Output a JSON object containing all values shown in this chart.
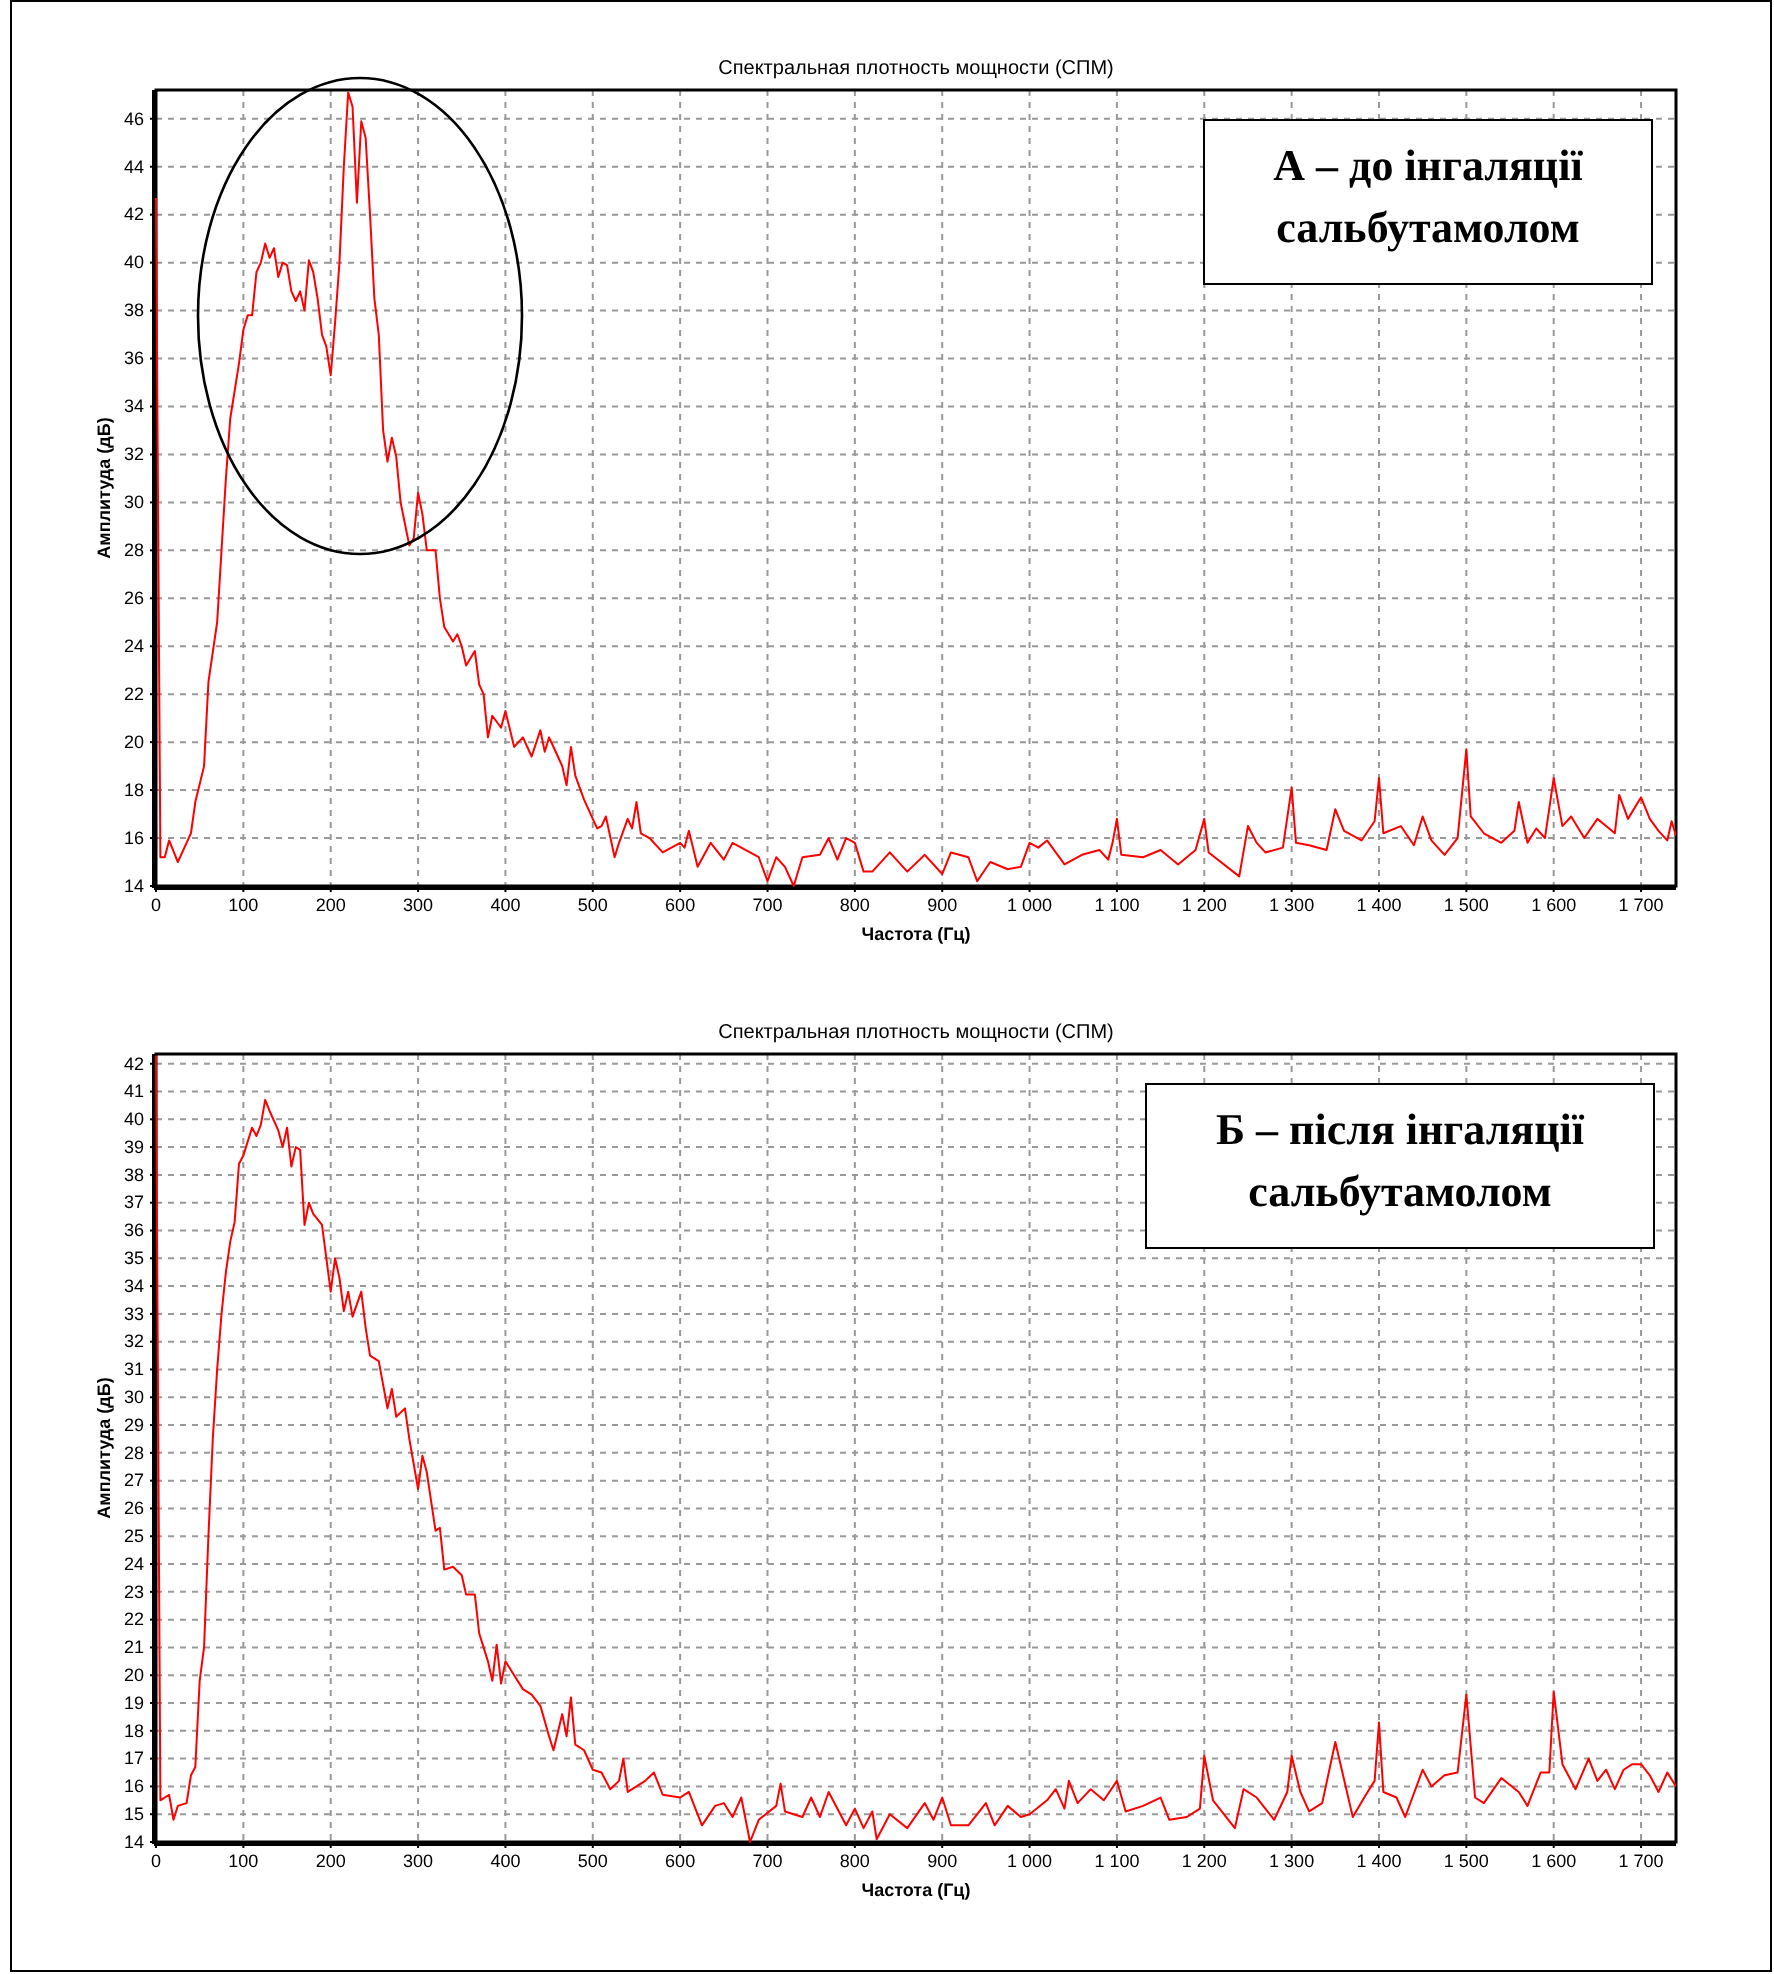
{
  "chart_data": [
    {
      "type": "line",
      "title": "Спектральная плотность мощности (СПМ)",
      "xlabel": "Частота (Гц)",
      "ylabel": "Амплитуда (дБ)",
      "annotations": [
        "А – до інгаляції сальбутамолом"
      ],
      "xlim": [
        0,
        1740
      ],
      "ylim": [
        14,
        47.2
      ],
      "xticks": [
        0,
        100,
        200,
        300,
        400,
        500,
        600,
        700,
        800,
        900,
        {
          "value": 1000,
          "label": "1 000"
        },
        {
          "value": 1100,
          "label": "1 100"
        },
        {
          "value": 1200,
          "label": "1 200"
        },
        {
          "value": 1300,
          "label": "1 300"
        },
        {
          "value": 1400,
          "label": "1 400"
        },
        {
          "value": 1500,
          "label": "1 500"
        },
        {
          "value": 1600,
          "label": "1 600"
        },
        {
          "value": 1700,
          "label": "1 700"
        }
      ],
      "yticks": [
        14,
        16,
        18,
        20,
        22,
        24,
        26,
        28,
        30,
        32,
        34,
        36,
        38,
        40,
        42,
        44,
        46
      ],
      "grid": true,
      "line_style": "solid",
      "marker": "none",
      "series": [
        {
          "color": "#ff0000",
          "x": [
            0,
            5,
            10,
            15,
            25,
            35,
            40,
            45,
            55,
            60,
            70,
            75,
            80,
            85,
            95,
            100,
            105,
            110,
            115,
            120,
            125,
            130,
            135,
            140,
            145,
            150,
            155,
            160,
            165,
            170,
            175,
            180,
            185,
            190,
            195,
            200,
            205,
            210,
            215,
            220,
            225,
            230,
            235,
            240,
            245,
            250,
            255,
            260,
            265,
            270,
            275,
            280,
            290,
            295,
            300,
            305,
            310,
            320,
            325,
            330,
            340,
            345,
            350,
            355,
            365,
            370,
            375,
            380,
            385,
            395,
            400,
            410,
            420,
            430,
            440,
            445,
            450,
            460,
            465,
            470,
            475,
            480,
            490,
            500,
            505,
            510,
            515,
            525,
            530,
            540,
            545,
            550,
            555,
            565,
            580,
            600,
            605,
            610,
            620,
            635,
            650,
            660,
            680,
            690,
            700,
            710,
            720,
            730,
            740,
            760,
            770,
            780,
            790,
            800,
            810,
            820,
            840,
            860,
            880,
            900,
            910,
            930,
            940,
            955,
            975,
            990,
            1000,
            1010,
            1020,
            1040,
            1060,
            1080,
            1090,
            1095,
            1100,
            1105,
            1130,
            1150,
            1170,
            1190,
            1200,
            1205,
            1240,
            1250,
            1260,
            1270,
            1290,
            1300,
            1305,
            1320,
            1340,
            1350,
            1360,
            1380,
            1395,
            1400,
            1405,
            1425,
            1440,
            1450,
            1460,
            1475,
            1490,
            1500,
            1505,
            1520,
            1540,
            1555,
            1560,
            1570,
            1580,
            1590,
            1600,
            1610,
            1620,
            1635,
            1650,
            1660,
            1670,
            1675,
            1685,
            1700,
            1710,
            1720,
            1730,
            1735,
            1740
          ],
          "values": [
            42.7,
            15.2,
            15.2,
            15.9,
            15.0,
            15.8,
            16.2,
            17.5,
            19,
            22.5,
            25,
            28,
            31,
            33.5,
            35.8,
            37.2,
            37.8,
            37.8,
            39.6,
            40,
            40.8,
            40.2,
            40.6,
            39.4,
            40,
            39.9,
            38.8,
            38.4,
            38.8,
            38.0,
            40.1,
            39.6,
            38.5,
            37,
            36.5,
            35.3,
            37.5,
            40,
            44,
            47.1,
            46.5,
            42.5,
            45.9,
            45.2,
            42,
            38.5,
            37,
            33,
            31.7,
            32.7,
            31.9,
            30,
            28.2,
            28.5,
            30.4,
            29.5,
            28,
            28,
            26,
            24.8,
            24.2,
            24.5,
            24,
            23.2,
            23.8,
            22.4,
            22,
            20.2,
            21.1,
            20.6,
            21.3,
            19.8,
            20.2,
            19.4,
            20.5,
            19.6,
            20.2,
            19.4,
            19,
            18.2,
            19.8,
            18.6,
            17.6,
            16.8,
            16.4,
            16.5,
            16.9,
            15.2,
            15.8,
            16.8,
            16.4,
            17.5,
            16.2,
            16,
            15.4,
            15.8,
            15.6,
            16.3,
            14.8,
            15.8,
            15.1,
            15.8,
            15.4,
            15.2,
            14.2,
            15.2,
            14.8,
            14.0,
            15.2,
            15.3,
            16,
            15.1,
            16,
            15.8,
            14.6,
            14.6,
            15.4,
            14.6,
            15.3,
            14.5,
            15.4,
            15.2,
            14.2,
            15,
            14.7,
            14.8,
            15.8,
            15.6,
            15.9,
            14.9,
            15.3,
            15.5,
            15.1,
            15.8,
            16.8,
            15.3,
            15.2,
            15.5,
            14.9,
            15.5,
            16.8,
            15.4,
            14.4,
            16.5,
            15.8,
            15.4,
            15.6,
            18.1,
            15.8,
            15.7,
            15.5,
            17.2,
            16.3,
            15.9,
            16.7,
            18.5,
            16.2,
            16.5,
            15.7,
            16.9,
            15.9,
            15.3,
            16,
            19.7,
            16.9,
            16.2,
            15.8,
            16.3,
            17.5,
            15.8,
            16.4,
            16,
            18.5,
            16.5,
            16.9,
            16,
            16.8,
            16.5,
            16.2,
            17.8,
            16.8,
            17.7,
            16.8,
            16.3,
            15.9,
            16.7,
            16.1
          ]
        }
      ]
    },
    {
      "type": "line",
      "title": "Спектральная плотность мощности (СПМ)",
      "xlabel": "Частота (Гц)",
      "ylabel": "Амплитуда (дБ)",
      "annotations": [
        "Б – після інгаляції сальбутамолом"
      ],
      "xlim": [
        0,
        1740
      ],
      "ylim": [
        14,
        42.35
      ],
      "xticks": [
        0,
        100,
        200,
        300,
        400,
        500,
        600,
        700,
        800,
        900,
        {
          "value": 1000,
          "label": "1 000"
        },
        {
          "value": 1100,
          "label": "1 100"
        },
        {
          "value": 1200,
          "label": "1 200"
        },
        {
          "value": 1300,
          "label": "1 300"
        },
        {
          "value": 1400,
          "label": "1 400"
        },
        {
          "value": 1500,
          "label": "1 500"
        },
        {
          "value": 1600,
          "label": "1 600"
        },
        {
          "value": 1700,
          "label": "1 700"
        }
      ],
      "yticks": [
        14,
        15,
        16,
        17,
        18,
        19,
        20,
        21,
        22,
        23,
        24,
        25,
        26,
        27,
        28,
        29,
        30,
        31,
        32,
        33,
        34,
        35,
        36,
        37,
        38,
        39,
        40,
        41,
        42
      ],
      "grid": true,
      "line_style": "solid",
      "marker": "none",
      "series": [
        {
          "color": "#ff0000",
          "x": [
            0,
            5,
            15,
            20,
            25,
            35,
            40,
            45,
            50,
            55,
            60,
            65,
            70,
            75,
            80,
            85,
            90,
            95,
            100,
            110,
            115,
            120,
            125,
            130,
            140,
            145,
            150,
            155,
            160,
            165,
            170,
            175,
            180,
            190,
            200,
            205,
            210,
            215,
            220,
            225,
            235,
            240,
            245,
            255,
            265,
            270,
            275,
            285,
            290,
            300,
            305,
            310,
            320,
            325,
            330,
            340,
            350,
            355,
            365,
            370,
            380,
            385,
            390,
            395,
            400,
            410,
            420,
            430,
            440,
            450,
            455,
            465,
            470,
            475,
            480,
            490,
            500,
            510,
            520,
            530,
            535,
            540,
            560,
            570,
            580,
            600,
            610,
            625,
            640,
            650,
            660,
            670,
            680,
            690,
            710,
            715,
            720,
            740,
            750,
            760,
            770,
            790,
            800,
            810,
            820,
            825,
            840,
            860,
            880,
            890,
            900,
            910,
            930,
            950,
            960,
            975,
            990,
            1000,
            1020,
            1030,
            1040,
            1045,
            1055,
            1070,
            1085,
            1100,
            1110,
            1130,
            1150,
            1160,
            1180,
            1195,
            1200,
            1210,
            1235,
            1245,
            1260,
            1280,
            1295,
            1300,
            1310,
            1320,
            1335,
            1350,
            1370,
            1385,
            1395,
            1400,
            1405,
            1420,
            1430,
            1450,
            1460,
            1475,
            1490,
            1500,
            1510,
            1520,
            1540,
            1560,
            1570,
            1585,
            1595,
            1600,
            1610,
            1625,
            1640,
            1650,
            1660,
            1670,
            1680,
            1690,
            1700,
            1710,
            1720,
            1730,
            1740
          ],
          "values": [
            42.3,
            15.5,
            15.7,
            14.8,
            15.3,
            15.4,
            16.4,
            16.7,
            19.8,
            21,
            25,
            28.5,
            31,
            33,
            34.5,
            35.6,
            36.3,
            38.4,
            38.7,
            39.7,
            39.4,
            39.8,
            40.7,
            40.3,
            39.6,
            39,
            39.7,
            38.3,
            39,
            38.9,
            36.2,
            37,
            36.6,
            36.2,
            33.8,
            35,
            34.3,
            33.1,
            33.8,
            32.9,
            33.8,
            32.5,
            31.5,
            31.3,
            29.6,
            30.3,
            29.3,
            29.6,
            28.5,
            26.7,
            27.9,
            27.3,
            25.2,
            25.3,
            23.8,
            23.9,
            23.6,
            22.9,
            22.9,
            21.5,
            20.5,
            19.8,
            21.1,
            19.7,
            20.5,
            20,
            19.5,
            19.3,
            18.9,
            17.8,
            17.3,
            18.6,
            17.8,
            19.2,
            17.5,
            17.3,
            16.6,
            16.5,
            15.9,
            16.2,
            17,
            15.8,
            16.2,
            16.5,
            15.7,
            15.6,
            15.8,
            14.6,
            15.3,
            15.4,
            14.9,
            15.6,
            14.0,
            14.8,
            15.3,
            16.1,
            15.1,
            14.9,
            15.6,
            14.9,
            15.8,
            14.6,
            15.2,
            14.5,
            15.1,
            14.1,
            15,
            14.5,
            15.4,
            14.8,
            15.6,
            14.6,
            14.6,
            15.4,
            14.6,
            15.3,
            14.9,
            15.0,
            15.5,
            15.9,
            15.2,
            16.2,
            15.4,
            15.9,
            15.5,
            16.2,
            15.1,
            15.3,
            15.6,
            14.8,
            14.9,
            15.2,
            17.1,
            15.5,
            14.5,
            15.9,
            15.6,
            14.8,
            15.8,
            17.1,
            15.8,
            15.1,
            15.4,
            17.6,
            14.9,
            15.7,
            16.2,
            18.3,
            15.8,
            15.6,
            14.9,
            16.6,
            16,
            16.4,
            16.5,
            19.3,
            15.6,
            15.4,
            16.3,
            15.8,
            15.3,
            16.5,
            16.5,
            19.4,
            16.8,
            15.9,
            17.0,
            16.2,
            16.6,
            15.9,
            16.6,
            16.8,
            16.8,
            16.4,
            15.8,
            16.5,
            16.0
          ]
        }
      ]
    }
  ]
}
